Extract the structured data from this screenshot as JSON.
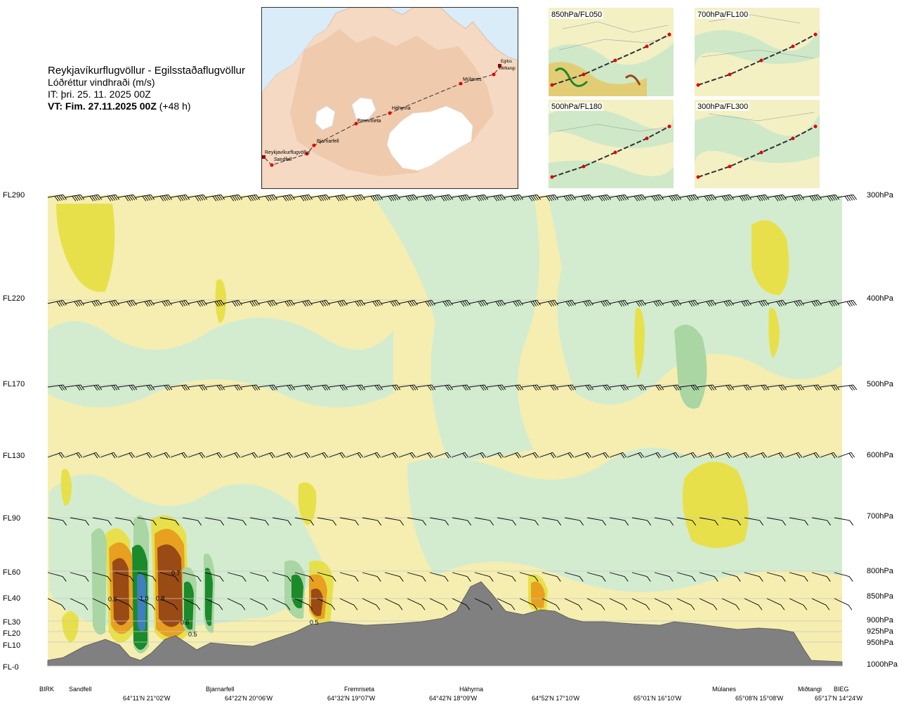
{
  "header": {
    "route": "Reykjavíkurflugvöllur - Egilsstaðaflugvöllur",
    "parameter": "Lóðréttur vindhraði (m/s)",
    "issue_time": "IT: þri. 25. 11. 2025 00Z",
    "valid_label": "VT: Fim. 27.11.2025 00Z",
    "valid_offset": "(+48 h)"
  },
  "overview_map": {
    "route_points": [
      "Reykjavíkurflugvöllur",
      "Sandfell",
      "Bjarnarfell",
      "Fremriseta",
      "Háhyrna",
      "Múlanes",
      "Miðtangi",
      "Egilss"
    ],
    "colors": {
      "sea": "#d9ecf7",
      "land": "#f6d9c2",
      "ice": "#ffffff",
      "route": "#333333",
      "point": "#e00000"
    }
  },
  "level_panels": [
    {
      "label": "850hPa/FL050"
    },
    {
      "label": "700hPa/FL100"
    },
    {
      "label": "500hPa/FL180"
    },
    {
      "label": "300hPa/FL300"
    }
  ],
  "cross_section": {
    "flight_levels": [
      "FL290",
      "FL220",
      "FL170",
      "FL130",
      "FL90",
      "FL60",
      "FL40",
      "FL30",
      "FL20",
      "FL10",
      "FL-0"
    ],
    "pressure_levels": [
      "300hPa",
      "400hPa",
      "500hPa",
      "600hPa",
      "700hPa",
      "800hPa",
      "850hPa",
      "900hPa",
      "925hPa",
      "950hPa",
      "1000hPa"
    ],
    "stations": [
      "BIRK",
      "Sandfell",
      "Bjarnarfell",
      "Fremriseta",
      "Háhyrna",
      "Múlanes",
      "Miðtangi",
      "BIEG"
    ],
    "coordinates": [
      "64°11'N 21°02'W",
      "64°22'N 20°06'W",
      "64°32'N 19°07'W",
      "64°42'N 18°09'W",
      "64°52'N 17°10'W",
      "65°01'N 16°10'W",
      "65°08'N 15°08'W",
      "65°17'N 14°24'W"
    ],
    "contour_labels": [
      "0.6",
      "1.0",
      "0.8",
      "0.7",
      "0.6",
      "0.5",
      "0.5"
    ],
    "colors": {
      "base": "#f5eeb0",
      "pale_yellow": "#faf6cc",
      "yellow": "#e8e04a",
      "orange": "#e8a020",
      "brown": "#9a4a14",
      "pale_green": "#d3ecd0",
      "green": "#a9d6a3",
      "dark_green": "#1a8a2a",
      "blue": "#3f7fc0",
      "terrain": "#808080",
      "isobar": "#c8c8c8",
      "barb": "#000000"
    }
  }
}
